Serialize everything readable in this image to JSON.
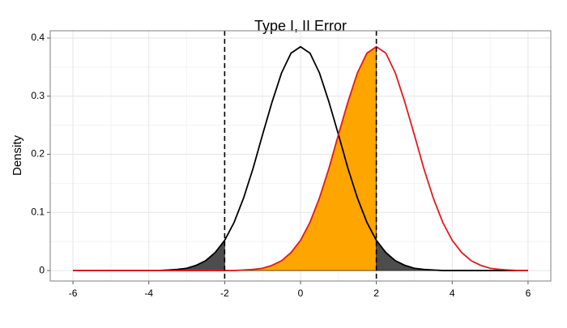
{
  "chart_data": {
    "type": "line",
    "title": "Type I, II Error",
    "y_label": "Density",
    "x": [
      -6,
      -5.75,
      -5.5,
      -5.25,
      -5,
      -4.75,
      -4.5,
      -4.25,
      -4,
      -3.75,
      -3.5,
      -3.25,
      -3,
      -2.75,
      -2.5,
      -2.25,
      -2,
      -1.75,
      -1.5,
      -1.25,
      -1,
      -0.75,
      -0.5,
      -0.25,
      0,
      0.25,
      0.5,
      0.75,
      1,
      1.25,
      1.5,
      1.75,
      2,
      2.25,
      2.5,
      2.75,
      3,
      3.25,
      3.5,
      3.75,
      4,
      4.25,
      4.5,
      4.75,
      5,
      5.25,
      5.5,
      5.75,
      6
    ],
    "series": [
      {
        "color": "#000000",
        "values": [
          0,
          0,
          0,
          0,
          0,
          0,
          0,
          0,
          0,
          0,
          0.001,
          0.002,
          0.004,
          0.009,
          0.017,
          0.031,
          0.052,
          0.083,
          0.125,
          0.176,
          0.234,
          0.29,
          0.34,
          0.374,
          0.385,
          0.374,
          0.34,
          0.29,
          0.234,
          0.176,
          0.125,
          0.083,
          0.052,
          0.031,
          0.017,
          0.009,
          0.004,
          0.002,
          0.001,
          0,
          0,
          0,
          0,
          0,
          0,
          0,
          0,
          0,
          0
        ]
      },
      {
        "color": "#e41a1c",
        "values": [
          0,
          0,
          0,
          0,
          0,
          0,
          0,
          0,
          0,
          0,
          0,
          0,
          0,
          0,
          0,
          0,
          0,
          0,
          0.001,
          0.002,
          0.004,
          0.009,
          0.017,
          0.031,
          0.052,
          0.083,
          0.125,
          0.176,
          0.234,
          0.29,
          0.34,
          0.374,
          0.385,
          0.374,
          0.34,
          0.29,
          0.234,
          0.176,
          0.125,
          0.083,
          0.052,
          0.031,
          0.017,
          0.009,
          0.004,
          0.002,
          0.001,
          0,
          0
        ]
      }
    ],
    "shading": [
      {
        "series": 0,
        "region": "outside",
        "color": "#4d4d4d"
      },
      {
        "series": 1,
        "region": "inside",
        "color": "#ffa500"
      }
    ],
    "vlines": [
      -2,
      2
    ],
    "xlim": [
      -6.6,
      6.6
    ],
    "xticks": [
      -6,
      -4,
      -2,
      0,
      2,
      4,
      6
    ],
    "ylim": [
      -0.018,
      0.4125
    ],
    "yticks": [
      0,
      0.1,
      0.2,
      0.3,
      0.4
    ],
    "grid": true
  }
}
